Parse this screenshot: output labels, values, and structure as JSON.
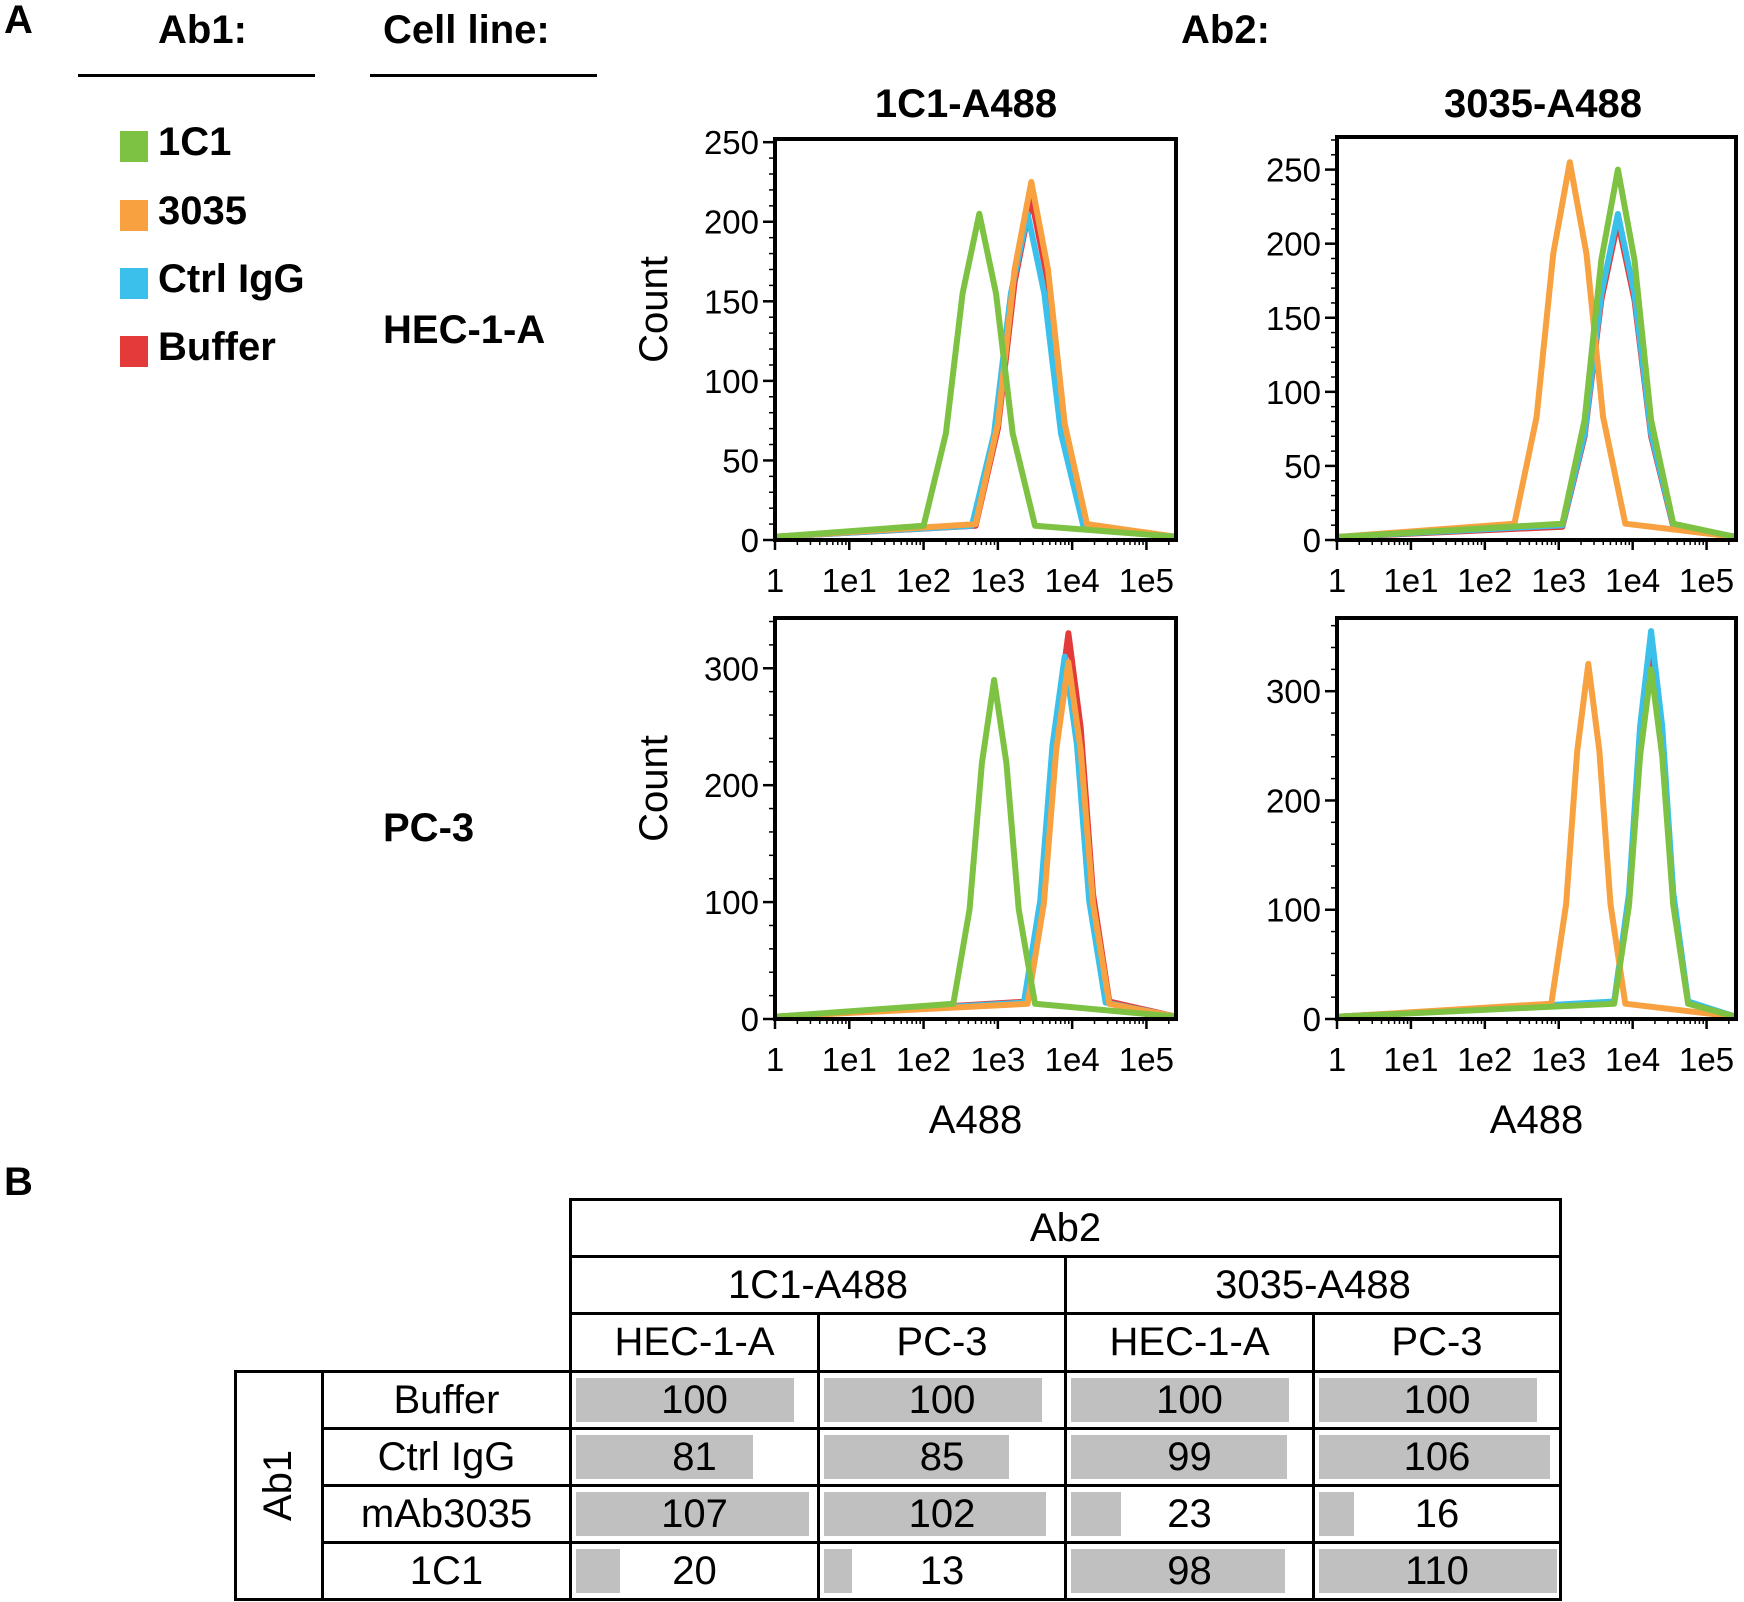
{
  "panel_a": {
    "label": "A",
    "ab1_header": "Ab1:",
    "cell_line_header": "Cell line:",
    "ab2_header": "Ab2:",
    "legend": [
      {
        "name": "1C1",
        "color": "#7dc242"
      },
      {
        "name": "3035",
        "color": "#f7a140"
      },
      {
        "name": "Ctrl IgG",
        "color": "#3ac0ea"
      },
      {
        "name": "Buffer",
        "color": "#e53a3a"
      }
    ],
    "rows": [
      "HEC-1-A",
      "PC-3"
    ],
    "columns": [
      "1C1-A488",
      "3035-A488"
    ]
  },
  "chart_data": [
    {
      "type": "line",
      "column": "1C1-A488",
      "row": "HEC-1-A",
      "xlabel": "",
      "ylabel": "Count",
      "xscale": "log",
      "xlim": [
        1,
        250000
      ],
      "ylim": [
        0,
        252
      ],
      "xticks": [
        1,
        10,
        100,
        1000,
        10000,
        100000
      ],
      "xtick_labels": [
        "1",
        "1e1",
        "1e2",
        "1e3",
        "1e4",
        "1e5"
      ],
      "yticks": [
        0,
        50,
        100,
        150,
        200,
        250
      ],
      "ytick_labels": [
        "0",
        "50",
        "100",
        "150",
        "200",
        "250"
      ],
      "yminor": 10,
      "series": [
        {
          "name": "Buffer",
          "color": "#e53a3a",
          "points": [
            [
              501,
              9
            ],
            [
              1000,
              70
            ],
            [
              1679,
              162
            ],
            [
              2818,
              215
            ],
            [
              4732,
              162
            ],
            [
              7943,
              70
            ],
            [
              15849,
              9
            ]
          ]
        },
        {
          "name": "Ctrl IgG",
          "color": "#3ac0ea",
          "points": [
            [
              447,
              9
            ],
            [
              891,
              67
            ],
            [
              1496,
              155
            ],
            [
              2512,
              205
            ],
            [
              4217,
              155
            ],
            [
              7079,
              67
            ],
            [
              14125,
              9
            ]
          ]
        },
        {
          "name": "3035",
          "color": "#f7a140",
          "points": [
            [
              501,
              10
            ],
            [
              1000,
              73
            ],
            [
              1679,
              170
            ],
            [
              2818,
              225
            ],
            [
              4732,
              170
            ],
            [
              7943,
              73
            ],
            [
              15849,
              10
            ]
          ]
        },
        {
          "name": "1C1",
          "color": "#7dc242",
          "points": [
            [
              100,
              9
            ],
            [
              200,
              67
            ],
            [
              335,
              155
            ],
            [
              562,
              205
            ],
            [
              944,
              155
            ],
            [
              1585,
              67
            ],
            [
              3162,
              9
            ]
          ]
        }
      ]
    },
    {
      "type": "line",
      "column": "3035-A488",
      "row": "HEC-1-A",
      "xlabel": "",
      "ylabel": "",
      "xscale": "log",
      "xlim": [
        1,
        250000
      ],
      "ylim": [
        0,
        272
      ],
      "xticks": [
        1,
        10,
        100,
        1000,
        10000,
        100000
      ],
      "xtick_labels": [
        "1",
        "1e1",
        "1e2",
        "1e3",
        "1e4",
        "1e5"
      ],
      "yticks": [
        0,
        50,
        100,
        150,
        200,
        250
      ],
      "ytick_labels": [
        "0",
        "50",
        "100",
        "150",
        "200",
        "250"
      ],
      "yminor": 10,
      "series": [
        {
          "name": "Buffer",
          "color": "#e53a3a",
          "points": [
            [
              1122,
              9
            ],
            [
              2239,
              70
            ],
            [
              3758,
              162
            ],
            [
              6310,
              215
            ],
            [
              10593,
              162
            ],
            [
              17783,
              70
            ],
            [
              35481,
              9
            ]
          ]
        },
        {
          "name": "Ctrl IgG",
          "color": "#3ac0ea",
          "points": [
            [
              1122,
              10
            ],
            [
              2239,
              72
            ],
            [
              3758,
              166
            ],
            [
              6310,
              220
            ],
            [
              10593,
              166
            ],
            [
              17783,
              72
            ],
            [
              35481,
              10
            ]
          ]
        },
        {
          "name": "3035",
          "color": "#f7a140",
          "points": [
            [
              251,
              11
            ],
            [
              501,
              83
            ],
            [
              841,
              193
            ],
            [
              1413,
              255
            ],
            [
              2371,
              193
            ],
            [
              3981,
              83
            ],
            [
              7943,
              11
            ]
          ]
        },
        {
          "name": "1C1",
          "color": "#7dc242",
          "points": [
            [
              1122,
              11
            ],
            [
              2239,
              81
            ],
            [
              3758,
              189
            ],
            [
              6310,
              250
            ],
            [
              10593,
              189
            ],
            [
              17783,
              81
            ],
            [
              35481,
              11
            ]
          ]
        }
      ]
    },
    {
      "type": "line",
      "column": "1C1-A488",
      "row": "PC-3",
      "xlabel": "A488",
      "ylabel": "Count",
      "xscale": "log",
      "xlim": [
        1,
        250000
      ],
      "ylim": [
        0,
        343
      ],
      "xticks": [
        1,
        10,
        100,
        1000,
        10000,
        100000
      ],
      "xtick_labels": [
        "1",
        "1e1",
        "1e2",
        "1e3",
        "1e4",
        "1e5"
      ],
      "yticks": [
        0,
        100,
        200,
        300
      ],
      "ytick_labels": [
        "0",
        "100",
        "200",
        "300"
      ],
      "yminor": 20,
      "series": [
        {
          "name": "Buffer",
          "color": "#e53a3a",
          "points": [
            [
              2512,
              15
            ],
            [
              4169,
              107
            ],
            [
              6095,
              249
            ],
            [
              8913,
              330
            ],
            [
              13032,
              249
            ],
            [
              19055,
              107
            ],
            [
              31623,
              15
            ]
          ]
        },
        {
          "name": "Ctrl IgG",
          "color": "#3ac0ea",
          "points": [
            [
              2239,
              14
            ],
            [
              3715,
              101
            ],
            [
              5433,
              234
            ],
            [
              7943,
              310
            ],
            [
              11614,
              234
            ],
            [
              16982,
              101
            ],
            [
              28184,
              14
            ]
          ]
        },
        {
          "name": "3035",
          "color": "#f7a140",
          "points": [
            [
              2512,
              13
            ],
            [
              4169,
              99
            ],
            [
              6095,
              230
            ],
            [
              8913,
              305
            ],
            [
              13032,
              230
            ],
            [
              19055,
              99
            ],
            [
              31623,
              13
            ]
          ]
        },
        {
          "name": "1C1",
          "color": "#7dc242",
          "points": [
            [
              251,
              13
            ],
            [
              417,
              94
            ],
            [
              610,
              219
            ],
            [
              891,
              290
            ],
            [
              1303,
              219
            ],
            [
              1905,
              94
            ],
            [
              3162,
              13
            ]
          ]
        }
      ]
    },
    {
      "type": "line",
      "column": "3035-A488",
      "row": "PC-3",
      "xlabel": "A488",
      "ylabel": "",
      "xscale": "log",
      "xlim": [
        1,
        250000
      ],
      "ylim": [
        0,
        367
      ],
      "xticks": [
        1,
        10,
        100,
        1000,
        10000,
        100000
      ],
      "xtick_labels": [
        "1",
        "1e1",
        "1e2",
        "1e3",
        "1e4",
        "1e5"
      ],
      "yticks": [
        0,
        100,
        200,
        300
      ],
      "ytick_labels": [
        "0",
        "100",
        "200",
        "300"
      ],
      "yminor": 20,
      "series": [
        {
          "name": "Buffer",
          "color": "#e53a3a",
          "points": [
            [
              5623,
              15
            ],
            [
              8913,
              107
            ],
            [
              12589,
              249
            ],
            [
              17783,
              330
            ],
            [
              25119,
              249
            ],
            [
              35481,
              107
            ],
            [
              56234,
              15
            ]
          ]
        },
        {
          "name": "Ctrl IgG",
          "color": "#3ac0ea",
          "points": [
            [
              5623,
              16
            ],
            [
              8913,
              115
            ],
            [
              12589,
              268
            ],
            [
              17783,
              355
            ],
            [
              25119,
              268
            ],
            [
              35481,
              115
            ],
            [
              56234,
              16
            ]
          ]
        },
        {
          "name": "3035",
          "color": "#f7a140",
          "points": [
            [
              794,
              14
            ],
            [
              1259,
              105
            ],
            [
              1778,
              245
            ],
            [
              2512,
              325
            ],
            [
              3548,
              245
            ],
            [
              5012,
              105
            ],
            [
              7943,
              14
            ]
          ]
        },
        {
          "name": "1C1",
          "color": "#7dc242",
          "points": [
            [
              5623,
              14
            ],
            [
              8913,
              104
            ],
            [
              12589,
              241
            ],
            [
              17783,
              320
            ],
            [
              25119,
              241
            ],
            [
              35481,
              104
            ],
            [
              56234,
              14
            ]
          ]
        }
      ]
    }
  ],
  "panel_b": {
    "label": "B",
    "col_header": "Ab2",
    "col_groups": [
      "1C1-A488",
      "3035-A488"
    ],
    "sub_columns": [
      "HEC-1-A",
      "PC-3",
      "HEC-1-A",
      "PC-3"
    ],
    "row_header": "Ab1",
    "bar_color": "#c0c0c0",
    "rows": [
      {
        "label": "Buffer",
        "values": [
          100,
          100,
          100,
          100
        ]
      },
      {
        "label": "Ctrl IgG",
        "values": [
          81,
          85,
          99,
          106
        ]
      },
      {
        "label": "mAb3035",
        "values": [
          107,
          102,
          23,
          16
        ]
      },
      {
        "label": "1C1",
        "values": [
          20,
          13,
          98,
          110
        ]
      }
    ]
  }
}
